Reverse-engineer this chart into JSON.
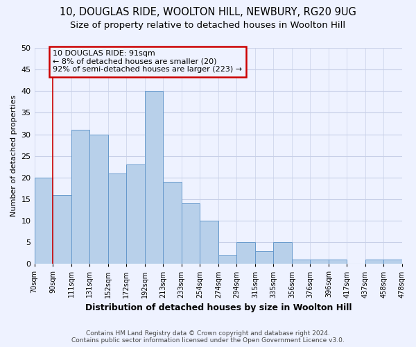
{
  "title1": "10, DOUGLAS RIDE, WOOLTON HILL, NEWBURY, RG20 9UG",
  "title2": "Size of property relative to detached houses in Woolton Hill",
  "xlabel": "Distribution of detached houses by size in Woolton Hill",
  "ylabel": "Number of detached properties",
  "footer1": "Contains HM Land Registry data © Crown copyright and database right 2024.",
  "footer2": "Contains public sector information licensed under the Open Government Licence v3.0.",
  "annotation_line1": "10 DOUGLAS RIDE: 91sqm",
  "annotation_line2": "← 8% of detached houses are smaller (20)",
  "annotation_line3": "92% of semi-detached houses are larger (223) →",
  "bar_values": [
    20,
    16,
    31,
    30,
    21,
    23,
    40,
    19,
    14,
    10,
    2,
    5,
    3,
    5,
    1,
    1,
    1,
    0,
    1,
    1
  ],
  "bin_labels": [
    "70sqm",
    "90sqm",
    "111sqm",
    "131sqm",
    "152sqm",
    "172sqm",
    "192sqm",
    "213sqm",
    "233sqm",
    "254sqm",
    "274sqm",
    "294sqm",
    "315sqm",
    "335sqm",
    "356sqm",
    "376sqm",
    "396sqm",
    "417sqm",
    "437sqm",
    "458sqm",
    "478sqm"
  ],
  "n_bins": 20,
  "bar_color": "#b8d0ea",
  "bar_edge_color": "#6699cc",
  "bar_width": 1.0,
  "vline_color": "#cc0000",
  "ylim": [
    0,
    50
  ],
  "yticks": [
    0,
    5,
    10,
    15,
    20,
    25,
    30,
    35,
    40,
    45,
    50
  ],
  "bg_color": "#eef2ff",
  "grid_color": "#c8d0e8",
  "annotation_box_color": "#cc0000",
  "title_fontsize": 10.5,
  "subtitle_fontsize": 9.5
}
